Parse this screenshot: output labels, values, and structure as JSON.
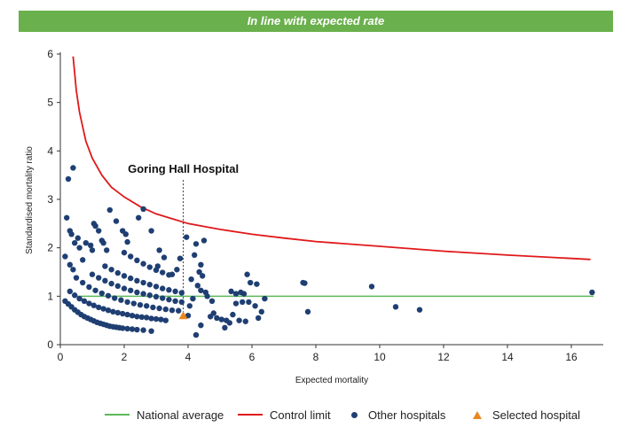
{
  "banner": {
    "text": "In line with expected rate",
    "color": "#6ab04c"
  },
  "chart_data": {
    "type": "scatter",
    "title": "",
    "xlabel": "Expected mortality",
    "ylabel": "Standardised mortality ratio",
    "xlim": [
      0,
      17
    ],
    "ylim": [
      0,
      6
    ],
    "xticks": [
      0,
      2,
      4,
      6,
      8,
      10,
      12,
      14,
      16
    ],
    "yticks": [
      0,
      1,
      2,
      3,
      4,
      5,
      6
    ],
    "grid": false,
    "legend_position": "bottom",
    "annotation": {
      "label": "Goring Hall Hospital",
      "x": 3.85
    },
    "national_average": {
      "name": "National average",
      "y": 1,
      "x_range": [
        0.4,
        16.7
      ],
      "color": "#5cb85c"
    },
    "control_limit": {
      "name": "Control limit",
      "color": "#e0191b",
      "x": [
        0.4,
        0.5,
        0.6,
        0.8,
        1.0,
        1.3,
        1.6,
        2.0,
        2.5,
        3.0,
        3.5,
        4.0,
        5.0,
        6.0,
        7.0,
        8.0,
        10.0,
        12.0,
        14.0,
        16.6
      ],
      "y": [
        5.95,
        5.25,
        4.8,
        4.2,
        3.85,
        3.5,
        3.25,
        3.05,
        2.85,
        2.7,
        2.6,
        2.5,
        2.38,
        2.28,
        2.2,
        2.13,
        2.03,
        1.93,
        1.85,
        1.76
      ]
    },
    "series": [
      {
        "name": "Other hospitals",
        "color": "#1f3f73",
        "points": [
          [
            0.4,
            3.65
          ],
          [
            0.25,
            3.42
          ],
          [
            0.2,
            2.62
          ],
          [
            0.3,
            2.35
          ],
          [
            0.35,
            2.28
          ],
          [
            0.55,
            2.2
          ],
          [
            0.45,
            2.1
          ],
          [
            0.6,
            2.0
          ],
          [
            0.8,
            2.1
          ],
          [
            0.7,
            1.75
          ],
          [
            0.3,
            1.65
          ],
          [
            0.4,
            1.55
          ],
          [
            0.15,
            1.82
          ],
          [
            0.95,
            2.05
          ],
          [
            1.05,
            2.5
          ],
          [
            1.1,
            2.45
          ],
          [
            1.2,
            2.35
          ],
          [
            1.0,
            1.95
          ],
          [
            1.3,
            2.15
          ],
          [
            1.35,
            2.1
          ],
          [
            1.45,
            1.95
          ],
          [
            1.55,
            2.78
          ],
          [
            1.75,
            2.55
          ],
          [
            1.95,
            2.35
          ],
          [
            2.05,
            2.28
          ],
          [
            2.1,
            2.12
          ],
          [
            2.45,
            2.62
          ],
          [
            2.6,
            2.8
          ],
          [
            2.85,
            2.35
          ],
          [
            3.1,
            1.95
          ],
          [
            3.25,
            1.8
          ],
          [
            3.05,
            1.62
          ],
          [
            3.75,
            1.78
          ],
          [
            3.65,
            1.55
          ],
          [
            3.5,
            1.45
          ],
          [
            3.95,
            2.22
          ],
          [
            4.25,
            2.08
          ],
          [
            4.5,
            2.15
          ],
          [
            4.2,
            1.85
          ],
          [
            4.4,
            1.65
          ],
          [
            4.35,
            1.5
          ],
          [
            4.45,
            1.42
          ],
          [
            4.1,
            1.35
          ],
          [
            4.3,
            1.22
          ],
          [
            4.4,
            1.12
          ],
          [
            4.55,
            1.08
          ],
          [
            4.6,
            1.0
          ],
          [
            4.75,
            0.9
          ],
          [
            4.8,
            0.65
          ],
          [
            4.7,
            0.58
          ],
          [
            4.9,
            0.55
          ],
          [
            5.05,
            0.52
          ],
          [
            5.2,
            0.5
          ],
          [
            5.15,
            0.35
          ],
          [
            4.4,
            0.4
          ],
          [
            4.25,
            0.2
          ],
          [
            4.0,
            0.6
          ],
          [
            4.05,
            0.8
          ],
          [
            4.15,
            0.95
          ],
          [
            5.35,
            1.1
          ],
          [
            5.5,
            1.05
          ],
          [
            5.65,
            1.08
          ],
          [
            5.75,
            1.05
          ],
          [
            5.85,
            1.45
          ],
          [
            5.95,
            1.28
          ],
          [
            6.15,
            1.25
          ],
          [
            5.5,
            0.85
          ],
          [
            5.7,
            0.88
          ],
          [
            5.9,
            0.88
          ],
          [
            6.1,
            0.8
          ],
          [
            6.4,
            0.95
          ],
          [
            6.3,
            0.68
          ],
          [
            6.2,
            0.55
          ],
          [
            5.6,
            0.5
          ],
          [
            5.8,
            0.48
          ],
          [
            5.3,
            0.45
          ],
          [
            5.4,
            0.62
          ],
          [
            7.6,
            1.28
          ],
          [
            7.65,
            1.27
          ],
          [
            7.75,
            0.68
          ],
          [
            9.75,
            1.2
          ],
          [
            10.5,
            0.78
          ],
          [
            11.25,
            0.72
          ],
          [
            16.65,
            1.08
          ]
        ],
        "band_points": [
          [
            0.15,
            0.9
          ],
          [
            0.25,
            0.84
          ],
          [
            0.35,
            0.78
          ],
          [
            0.45,
            0.72
          ],
          [
            0.55,
            0.67
          ],
          [
            0.65,
            0.62
          ],
          [
            0.75,
            0.58
          ],
          [
            0.85,
            0.55
          ],
          [
            0.95,
            0.52
          ],
          [
            1.05,
            0.49
          ],
          [
            1.15,
            0.46
          ],
          [
            1.25,
            0.44
          ],
          [
            1.35,
            0.42
          ],
          [
            1.45,
            0.4
          ],
          [
            1.55,
            0.38
          ],
          [
            1.65,
            0.37
          ],
          [
            1.75,
            0.36
          ],
          [
            1.85,
            0.35
          ],
          [
            1.95,
            0.34
          ],
          [
            2.1,
            0.33
          ],
          [
            2.25,
            0.32
          ],
          [
            2.4,
            0.31
          ],
          [
            2.6,
            0.3
          ],
          [
            2.85,
            0.28
          ],
          [
            0.3,
            1.1
          ],
          [
            0.45,
            1.02
          ],
          [
            0.6,
            0.95
          ],
          [
            0.75,
            0.9
          ],
          [
            0.9,
            0.85
          ],
          [
            1.05,
            0.81
          ],
          [
            1.2,
            0.77
          ],
          [
            1.35,
            0.74
          ],
          [
            1.5,
            0.71
          ],
          [
            1.65,
            0.68
          ],
          [
            1.8,
            0.66
          ],
          [
            1.95,
            0.64
          ],
          [
            2.1,
            0.62
          ],
          [
            2.25,
            0.6
          ],
          [
            2.4,
            0.58
          ],
          [
            2.55,
            0.57
          ],
          [
            2.7,
            0.56
          ],
          [
            2.85,
            0.54
          ],
          [
            3.0,
            0.53
          ],
          [
            3.15,
            0.52
          ],
          [
            3.3,
            0.5
          ],
          [
            0.5,
            1.38
          ],
          [
            0.7,
            1.28
          ],
          [
            0.9,
            1.19
          ],
          [
            1.1,
            1.12
          ],
          [
            1.3,
            1.06
          ],
          [
            1.5,
            1.01
          ],
          [
            1.7,
            0.96
          ],
          [
            1.9,
            0.92
          ],
          [
            2.1,
            0.88
          ],
          [
            2.3,
            0.85
          ],
          [
            2.5,
            0.82
          ],
          [
            2.7,
            0.8
          ],
          [
            2.9,
            0.77
          ],
          [
            3.1,
            0.75
          ],
          [
            3.3,
            0.73
          ],
          [
            3.5,
            0.71
          ],
          [
            3.7,
            0.7
          ],
          [
            1.0,
            1.45
          ],
          [
            1.2,
            1.38
          ],
          [
            1.4,
            1.32
          ],
          [
            1.6,
            1.26
          ],
          [
            1.8,
            1.21
          ],
          [
            2.0,
            1.16
          ],
          [
            2.2,
            1.12
          ],
          [
            2.4,
            1.08
          ],
          [
            2.6,
            1.05
          ],
          [
            2.8,
            1.02
          ],
          [
            3.0,
            0.99
          ],
          [
            3.2,
            0.96
          ],
          [
            3.4,
            0.93
          ],
          [
            3.6,
            0.9
          ],
          [
            3.8,
            0.88
          ],
          [
            1.4,
            1.62
          ],
          [
            1.6,
            1.55
          ],
          [
            1.8,
            1.48
          ],
          [
            2.0,
            1.42
          ],
          [
            2.2,
            1.37
          ],
          [
            2.4,
            1.32
          ],
          [
            2.6,
            1.28
          ],
          [
            2.8,
            1.24
          ],
          [
            3.0,
            1.2
          ],
          [
            3.2,
            1.16
          ],
          [
            3.4,
            1.13
          ],
          [
            3.6,
            1.1
          ],
          [
            3.8,
            1.07
          ],
          [
            2.0,
            1.9
          ],
          [
            2.2,
            1.82
          ],
          [
            2.4,
            1.74
          ],
          [
            2.6,
            1.67
          ],
          [
            2.8,
            1.6
          ],
          [
            3.0,
            1.54
          ],
          [
            3.2,
            1.49
          ],
          [
            3.4,
            1.44
          ]
        ]
      },
      {
        "name": "Selected hospital",
        "color": "#e8871e",
        "points": [
          [
            3.85,
            0.6
          ]
        ]
      }
    ]
  }
}
